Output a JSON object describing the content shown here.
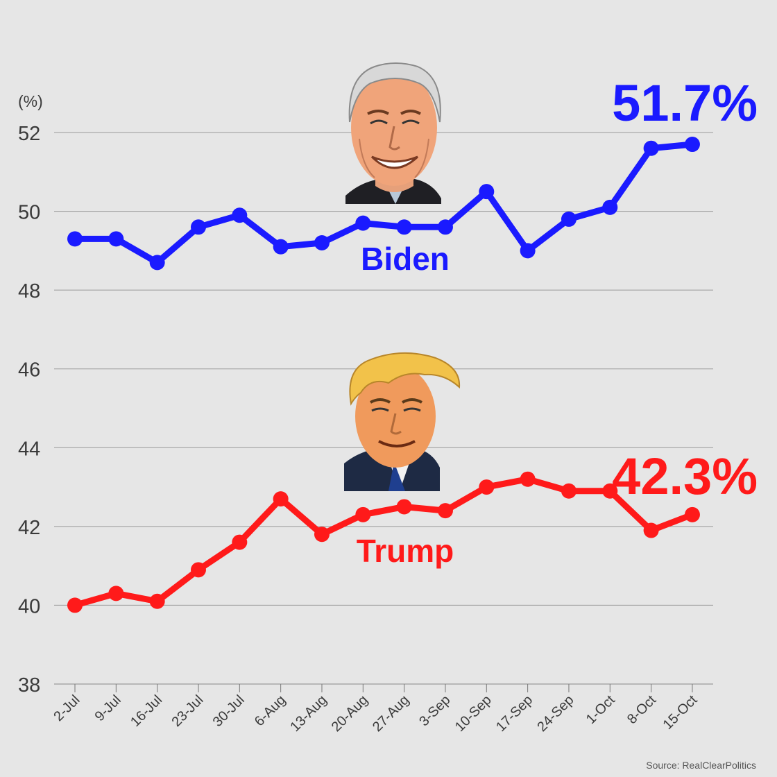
{
  "chart_data": {
    "type": "line",
    "unit_label": "(%)",
    "categories": [
      "2-Jul",
      "9-Jul",
      "16-Jul",
      "23-Jul",
      "30-Jul",
      "6-Aug",
      "13-Aug",
      "20-Aug",
      "27-Aug",
      "3-Sep",
      "10-Sep",
      "17-Sep",
      "24-Sep",
      "1-Oct",
      "8-Oct",
      "15-Oct"
    ],
    "ylim": [
      38,
      52
    ],
    "yticks": [
      38,
      40,
      42,
      44,
      46,
      48,
      50,
      52
    ],
    "grid": true,
    "series": [
      {
        "name": "Biden",
        "color": "#1a1aff",
        "end_label": "51.7%",
        "values": [
          49.3,
          49.3,
          48.7,
          49.6,
          49.9,
          49.1,
          49.2,
          49.7,
          49.6,
          49.6,
          50.5,
          49.0,
          49.8,
          50.1,
          51.6,
          51.7
        ]
      },
      {
        "name": "Trump",
        "color": "#ff1a1a",
        "end_label": "42.3%",
        "values": [
          40.0,
          40.3,
          40.1,
          40.9,
          41.6,
          42.7,
          41.8,
          42.3,
          42.5,
          42.4,
          43.0,
          43.2,
          42.9,
          42.9,
          41.9,
          42.3
        ]
      }
    ],
    "source": "Source: RealClearPolitics"
  }
}
